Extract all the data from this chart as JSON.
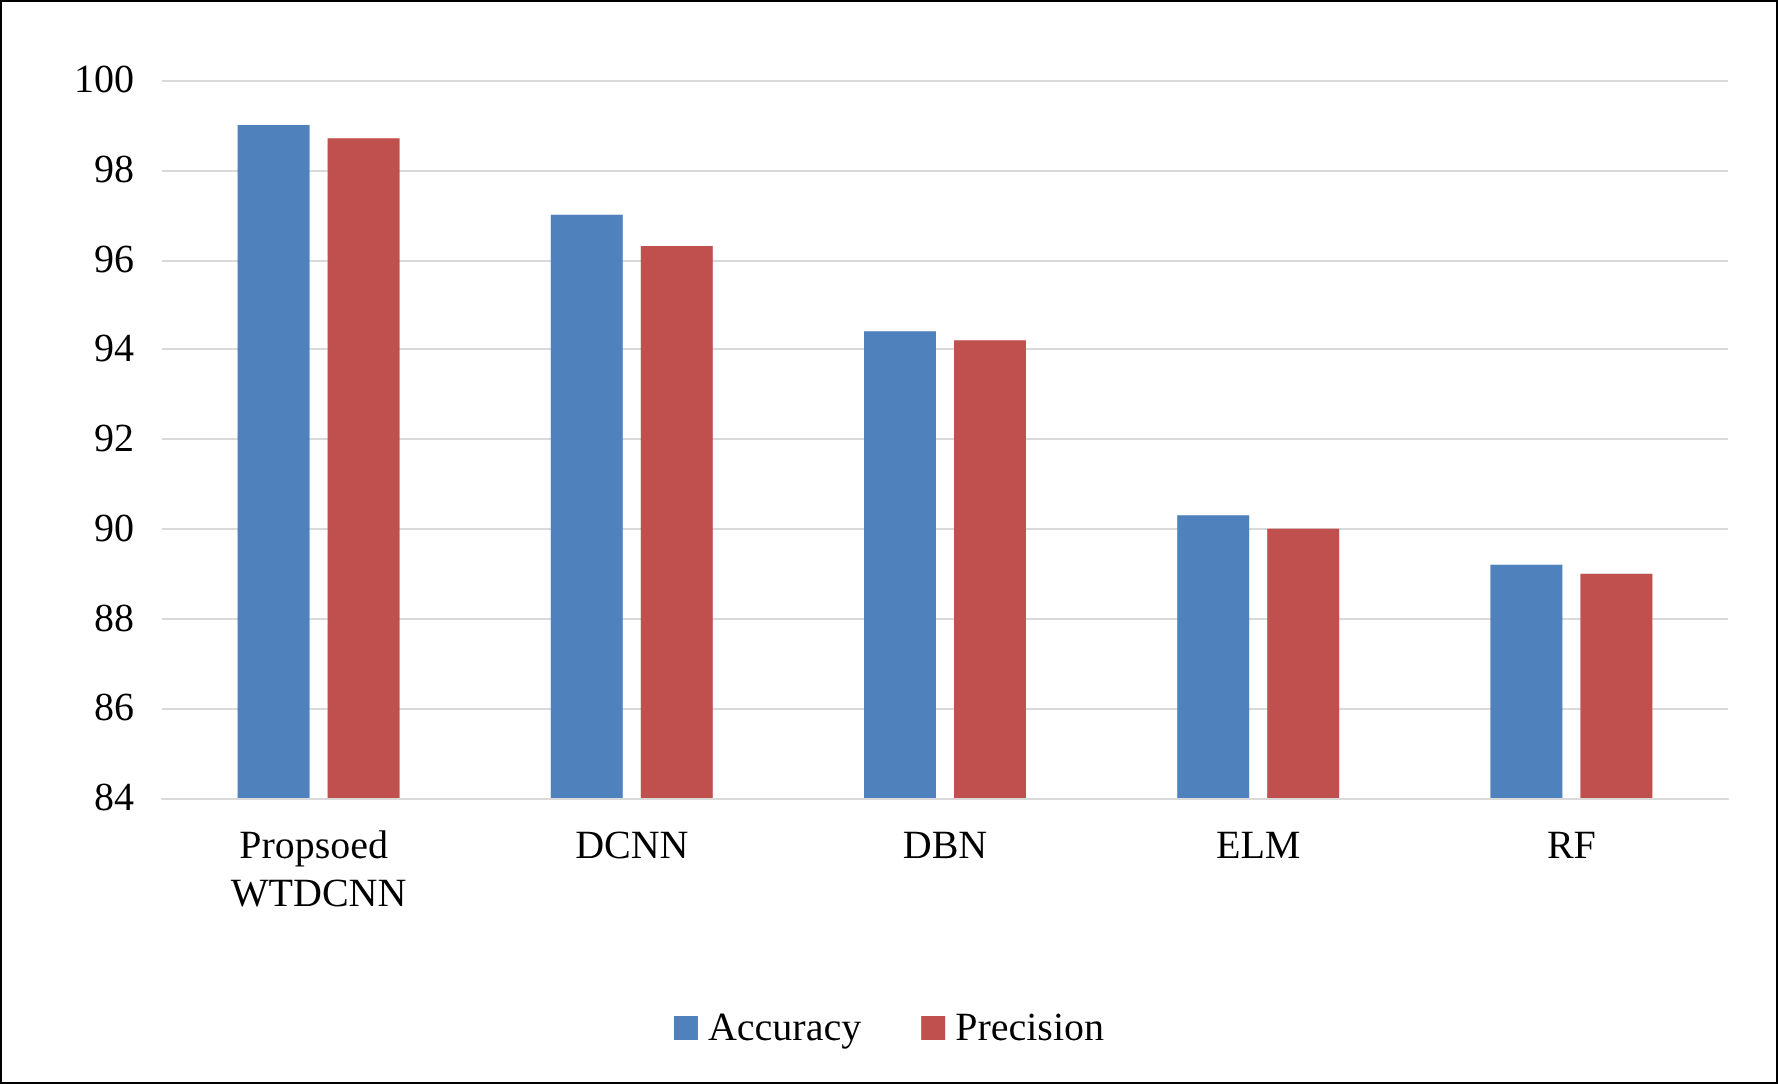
{
  "chart_data": {
    "type": "bar",
    "categories": [
      "Propsoed WTDCNN",
      "DCNN",
      "DBN",
      "ELM",
      "RF"
    ],
    "series": [
      {
        "name": "Accuracy",
        "color": "#4f81bd",
        "values": [
          99.0,
          97.0,
          94.4,
          90.3,
          89.2
        ]
      },
      {
        "name": "Precision",
        "color": "#c0504d",
        "values": [
          98.7,
          96.3,
          94.2,
          90.0,
          89.0
        ]
      }
    ],
    "ylim": [
      84,
      100
    ],
    "yticks": [
      84,
      86,
      88,
      90,
      92,
      94,
      96,
      98,
      100
    ],
    "grid": "y",
    "legend": "bottom"
  }
}
